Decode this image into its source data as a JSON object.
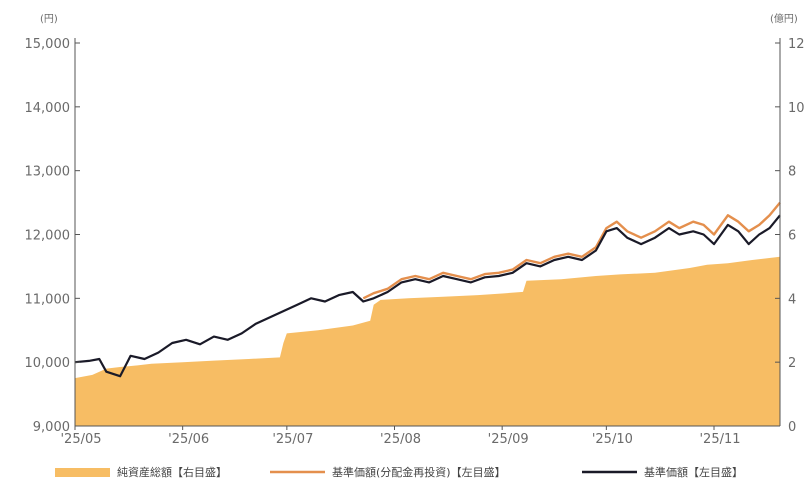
{
  "chart_data": {
    "type": "line",
    "y_left_unit": "(円)",
    "y_right_unit": "(億円)",
    "y_left_ticks": [
      "15,000",
      "14,000",
      "13,000",
      "12,000",
      "11,000",
      "10,000",
      "9,000"
    ],
    "y_right_ticks": [
      "12",
      "10",
      "8",
      "6",
      "4",
      "2",
      "0"
    ],
    "y_left_range": [
      9000,
      15000
    ],
    "y_right_range": [
      0,
      12
    ],
    "x_ticks": [
      "'25/05",
      "'25/06",
      "'25/07",
      "'25/08",
      "'25/09",
      "'25/10",
      "'25/11"
    ],
    "x_range": [
      "2025-05-01",
      "2025-11-20"
    ],
    "grid": false,
    "legend_position": "bottom",
    "series": [
      {
        "name": "純資産総額【右目盛】",
        "kind": "area",
        "axis": "right",
        "color": "#f7bd64",
        "points": [
          [
            "2025-05-01",
            1.5
          ],
          [
            "2025-05-06",
            1.6
          ],
          [
            "2025-05-10",
            1.8
          ],
          [
            "2025-05-14",
            1.85
          ],
          [
            "2025-05-19",
            1.9
          ],
          [
            "2025-05-23",
            1.95
          ],
          [
            "2025-06-01",
            2.0
          ],
          [
            "2025-06-10",
            2.05
          ],
          [
            "2025-06-20",
            2.1
          ],
          [
            "2025-06-29",
            2.15
          ],
          [
            "2025-06-30",
            2.6
          ],
          [
            "2025-07-01",
            2.9
          ],
          [
            "2025-07-10",
            3.0
          ],
          [
            "2025-07-20",
            3.15
          ],
          [
            "2025-07-25",
            3.3
          ],
          [
            "2025-07-26",
            3.8
          ],
          [
            "2025-07-28",
            3.95
          ],
          [
            "2025-08-05",
            4.0
          ],
          [
            "2025-08-15",
            4.05
          ],
          [
            "2025-08-25",
            4.1
          ],
          [
            "2025-09-01",
            4.15
          ],
          [
            "2025-09-07",
            4.2
          ],
          [
            "2025-09-08",
            4.55
          ],
          [
            "2025-09-18",
            4.6
          ],
          [
            "2025-09-28",
            4.7
          ],
          [
            "2025-10-05",
            4.75
          ],
          [
            "2025-10-15",
            4.8
          ],
          [
            "2025-10-25",
            4.95
          ],
          [
            "2025-10-30",
            5.05
          ],
          [
            "2025-11-05",
            5.1
          ],
          [
            "2025-11-12",
            5.2
          ],
          [
            "2025-11-20",
            5.3
          ]
        ]
      },
      {
        "name": "基準価額(分配金再投資)【左目盛】",
        "kind": "line",
        "axis": "left",
        "color": "#e48f4d",
        "points": [
          [
            "2025-07-23",
            11000
          ],
          [
            "2025-07-26",
            11080
          ],
          [
            "2025-07-30",
            11150
          ],
          [
            "2025-08-03",
            11300
          ],
          [
            "2025-08-07",
            11350
          ],
          [
            "2025-08-11",
            11300
          ],
          [
            "2025-08-15",
            11400
          ],
          [
            "2025-08-19",
            11350
          ],
          [
            "2025-08-23",
            11300
          ],
          [
            "2025-08-27",
            11380
          ],
          [
            "2025-08-31",
            11400
          ],
          [
            "2025-09-04",
            11450
          ],
          [
            "2025-09-08",
            11600
          ],
          [
            "2025-09-12",
            11550
          ],
          [
            "2025-09-16",
            11650
          ],
          [
            "2025-09-20",
            11700
          ],
          [
            "2025-09-24",
            11650
          ],
          [
            "2025-09-28",
            11800
          ],
          [
            "2025-10-01",
            12100
          ],
          [
            "2025-10-04",
            12200
          ],
          [
            "2025-10-07",
            12050
          ],
          [
            "2025-10-11",
            11950
          ],
          [
            "2025-10-15",
            12050
          ],
          [
            "2025-10-19",
            12200
          ],
          [
            "2025-10-22",
            12100
          ],
          [
            "2025-10-26",
            12200
          ],
          [
            "2025-10-29",
            12150
          ],
          [
            "2025-11-01",
            12000
          ],
          [
            "2025-11-05",
            12300
          ],
          [
            "2025-11-08",
            12200
          ],
          [
            "2025-11-11",
            12050
          ],
          [
            "2025-11-14",
            12150
          ],
          [
            "2025-11-17",
            12300
          ],
          [
            "2025-11-20",
            12500
          ]
        ]
      },
      {
        "name": "基準価額【左目盛】",
        "kind": "line",
        "axis": "left",
        "color": "#1a1a28",
        "points": [
          [
            "2025-05-01",
            10000
          ],
          [
            "2025-05-05",
            10020
          ],
          [
            "2025-05-08",
            10050
          ],
          [
            "2025-05-10",
            9850
          ],
          [
            "2025-05-14",
            9780
          ],
          [
            "2025-05-17",
            10100
          ],
          [
            "2025-05-21",
            10050
          ],
          [
            "2025-05-25",
            10150
          ],
          [
            "2025-05-29",
            10300
          ],
          [
            "2025-06-02",
            10350
          ],
          [
            "2025-06-06",
            10280
          ],
          [
            "2025-06-10",
            10400
          ],
          [
            "2025-06-14",
            10350
          ],
          [
            "2025-06-18",
            10450
          ],
          [
            "2025-06-22",
            10600
          ],
          [
            "2025-06-26",
            10700
          ],
          [
            "2025-06-30",
            10800
          ],
          [
            "2025-07-04",
            10900
          ],
          [
            "2025-07-08",
            11000
          ],
          [
            "2025-07-12",
            10950
          ],
          [
            "2025-07-16",
            11050
          ],
          [
            "2025-07-20",
            11100
          ],
          [
            "2025-07-23",
            10950
          ],
          [
            "2025-07-26",
            11000
          ],
          [
            "2025-07-30",
            11100
          ],
          [
            "2025-08-03",
            11250
          ],
          [
            "2025-08-07",
            11300
          ],
          [
            "2025-08-11",
            11250
          ],
          [
            "2025-08-15",
            11350
          ],
          [
            "2025-08-19",
            11300
          ],
          [
            "2025-08-23",
            11250
          ],
          [
            "2025-08-27",
            11330
          ],
          [
            "2025-08-31",
            11350
          ],
          [
            "2025-09-04",
            11400
          ],
          [
            "2025-09-08",
            11550
          ],
          [
            "2025-09-12",
            11500
          ],
          [
            "2025-09-16",
            11600
          ],
          [
            "2025-09-20",
            11650
          ],
          [
            "2025-09-24",
            11600
          ],
          [
            "2025-09-28",
            11750
          ],
          [
            "2025-10-01",
            12050
          ],
          [
            "2025-10-04",
            12100
          ],
          [
            "2025-10-07",
            11950
          ],
          [
            "2025-10-11",
            11850
          ],
          [
            "2025-10-15",
            11950
          ],
          [
            "2025-10-19",
            12100
          ],
          [
            "2025-10-22",
            12000
          ],
          [
            "2025-10-26",
            12050
          ],
          [
            "2025-10-29",
            12000
          ],
          [
            "2025-11-01",
            11850
          ],
          [
            "2025-11-05",
            12150
          ],
          [
            "2025-11-08",
            12050
          ],
          [
            "2025-11-11",
            11850
          ],
          [
            "2025-11-14",
            12000
          ],
          [
            "2025-11-17",
            12100
          ],
          [
            "2025-11-20",
            12300
          ]
        ]
      }
    ]
  }
}
